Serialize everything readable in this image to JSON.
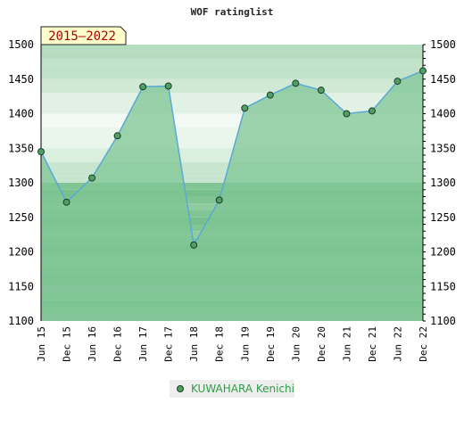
{
  "chart_data": {
    "type": "area",
    "title": "WOF ratinglist",
    "badge": "2015–2022",
    "ylim": [
      1100,
      1500
    ],
    "yticks": [
      1100,
      1150,
      1200,
      1250,
      1300,
      1350,
      1400,
      1450,
      1500
    ],
    "categories": [
      "Jun 15",
      "Dec 15",
      "Jun 16",
      "Dec 16",
      "Jun 17",
      "Dec 17",
      "Jun 18",
      "Dec 18",
      "Jun 19",
      "Dec 19",
      "Jun 20",
      "Dec 20",
      "Jun 21",
      "Dec 21",
      "Jun 22",
      "Dec 22"
    ],
    "series": [
      {
        "name": "KUWAHARA Kenichi",
        "values": [
          1345,
          1272,
          1307,
          1368,
          1439,
          1440,
          1210,
          1275,
          1408,
          1427,
          1444,
          1434,
          1400,
          1404,
          1447,
          1462
        ]
      }
    ],
    "grid": true,
    "legend": "bottom-center",
    "colors": {
      "line": "#5aa9d6",
      "area": "#7fc596",
      "marker": "#4f9e63",
      "legend_text": "#2e9e46",
      "badge_bg": "#ffffcc",
      "badge_text": "#b00000"
    }
  }
}
